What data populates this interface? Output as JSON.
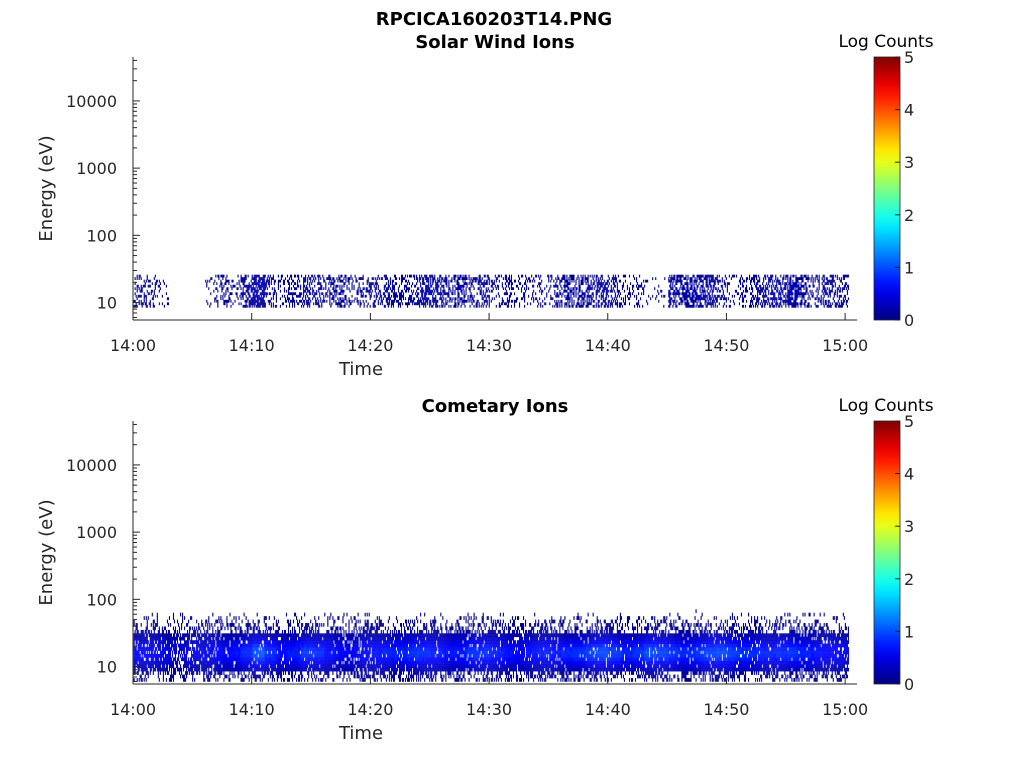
{
  "figure": {
    "title": "RPCICA160203T14.PNG"
  },
  "chart_data": [
    {
      "type": "heatmap",
      "title": "Solar Wind Ions",
      "xlabel": "Time",
      "ylabel": "Energy (eV)",
      "xlim": [
        "14:00",
        "15:01"
      ],
      "x_tick_labels": [
        "14:00",
        "14:10",
        "14:20",
        "14:30",
        "14:40",
        "14:50",
        "15:00"
      ],
      "y_scale": "log",
      "ylim": [
        5.5,
        45000
      ],
      "y_tick_labels": [
        "10",
        "100",
        "1000",
        "10000"
      ],
      "colorbar": {
        "label": "Log Counts",
        "range": [
          0,
          5
        ],
        "tick_labels": [
          "0",
          "1",
          "2",
          "3",
          "4",
          "5"
        ],
        "colormap": "jet"
      },
      "energy_band_eV": [
        6,
        40
      ],
      "activity_by_minute_log_counts": [
        0.4,
        0.3,
        0.1,
        0,
        0,
        0,
        0.2,
        0.4,
        0.2,
        0.6,
        1.0,
        0.4,
        0.3,
        0.5,
        0.6,
        0.5,
        0.5,
        0.5,
        0.4,
        0.4,
        0.5,
        0.5,
        0.5,
        0.5,
        0.7,
        0.6,
        0.5,
        0.6,
        0.4,
        0.5,
        0.3,
        0.5,
        0.3,
        0.3,
        0.3,
        0.4,
        0.6,
        0.6,
        0.6,
        0.6,
        0.5,
        0.3,
        0.3,
        0.1,
        0.1,
        0.7,
        0.7,
        0.8,
        0.7,
        0.5,
        0.2,
        0.4,
        0.5,
        0.6,
        0.6,
        0.9,
        0.5,
        0.4,
        0.5,
        0.4,
        0.3
      ],
      "grid": false
    },
    {
      "type": "heatmap",
      "title": "Cometary Ions",
      "xlabel": "Time",
      "ylabel": "Energy (eV)",
      "xlim": [
        "14:00",
        "15:01"
      ],
      "x_tick_labels": [
        "14:00",
        "14:10",
        "14:20",
        "14:30",
        "14:40",
        "14:50",
        "15:00"
      ],
      "y_scale": "log",
      "ylim": [
        5.5,
        45000
      ],
      "y_tick_labels": [
        "10",
        "100",
        "1000",
        "10000"
      ],
      "colorbar": {
        "label": "Log Counts",
        "range": [
          0,
          5
        ],
        "tick_labels": [
          "0",
          "1",
          "2",
          "3",
          "4",
          "5"
        ],
        "colormap": "jet"
      },
      "energy_band_eV": [
        6,
        80
      ],
      "peak_energy_eV": 16,
      "activity_by_minute_log_counts": [
        1.1,
        1.0,
        0.9,
        0.8,
        0.8,
        0.9,
        1.0,
        1.1,
        1.2,
        1.4,
        1.8,
        1.4,
        1.2,
        1.3,
        1.5,
        1.4,
        1.2,
        1.1,
        1.0,
        1.1,
        1.2,
        1.3,
        1.4,
        1.5,
        1.4,
        1.3,
        1.2,
        1.3,
        1.5,
        1.4,
        1.3,
        1.2,
        1.1,
        1.2,
        1.3,
        1.2,
        1.4,
        1.5,
        1.6,
        1.7,
        1.6,
        1.4,
        1.5,
        1.7,
        1.6,
        1.5,
        1.4,
        1.5,
        1.6,
        1.7,
        1.6,
        1.5,
        1.4,
        1.3,
        1.4,
        1.5,
        1.4,
        1.2,
        1.1,
        1.0,
        1.0
      ],
      "grid": false
    }
  ]
}
